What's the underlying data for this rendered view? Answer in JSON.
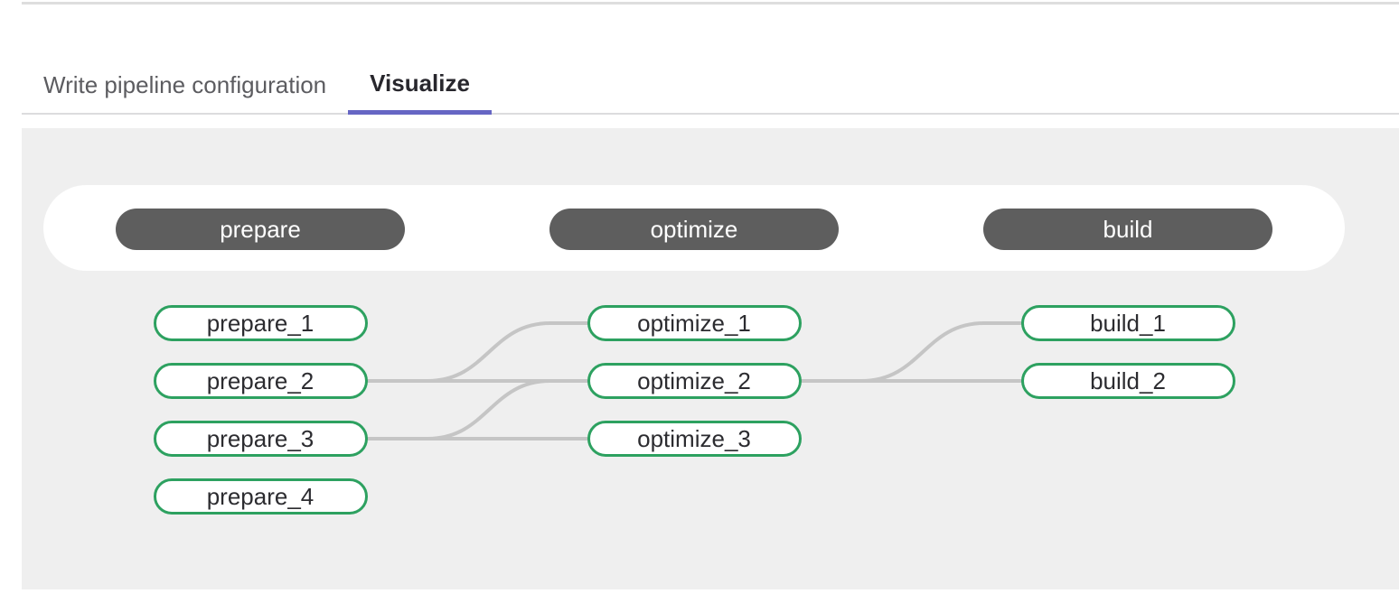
{
  "tabs": [
    {
      "label": "Write pipeline configuration",
      "active": false
    },
    {
      "label": "Visualize",
      "active": true
    }
  ],
  "pipeline": {
    "stages": [
      {
        "name": "prepare",
        "jobs": [
          "prepare_1",
          "prepare_2",
          "prepare_3",
          "prepare_4"
        ]
      },
      {
        "name": "optimize",
        "jobs": [
          "optimize_1",
          "optimize_2",
          "optimize_3"
        ]
      },
      {
        "name": "build",
        "jobs": [
          "build_1",
          "build_2"
        ]
      }
    ],
    "links": [
      {
        "from": "prepare_2",
        "to": "optimize_1"
      },
      {
        "from": "prepare_2",
        "to": "optimize_2"
      },
      {
        "from": "prepare_3",
        "to": "optimize_2"
      },
      {
        "from": "prepare_3",
        "to": "optimize_3"
      },
      {
        "from": "optimize_2",
        "to": "build_1"
      },
      {
        "from": "optimize_2",
        "to": "build_2"
      }
    ]
  },
  "colors": {
    "active_tab_underline": "#6666c4",
    "stage_pill_background": "#5e5e5e",
    "job_pill_border": "#2da160",
    "link_line": "#c5c5c5"
  }
}
